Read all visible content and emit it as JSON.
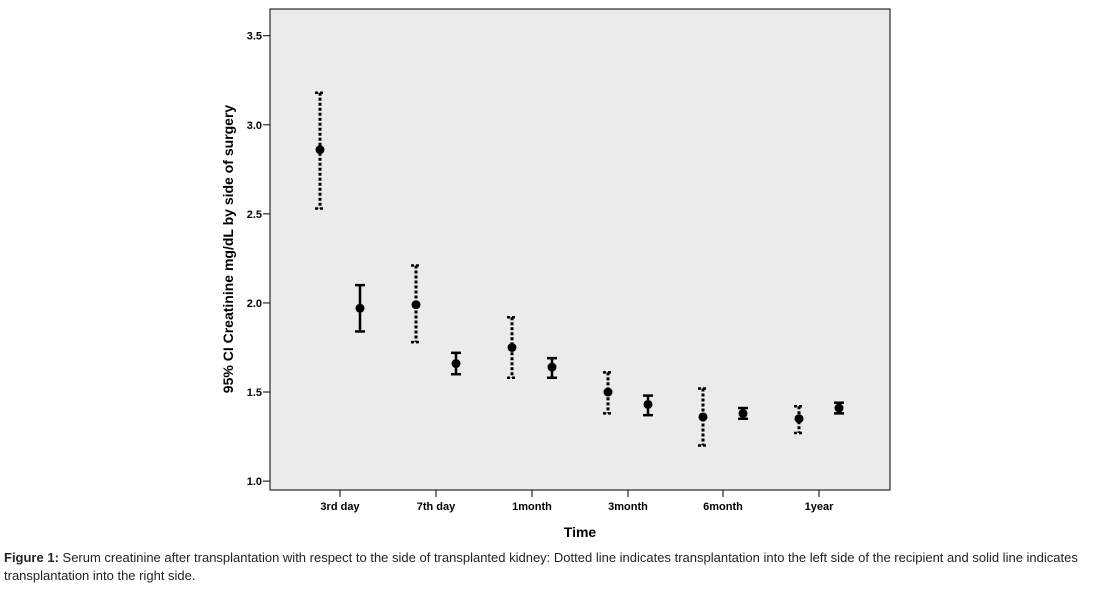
{
  "chart_data": {
    "type": "errorbar",
    "xlabel": "Time",
    "ylabel": "95% CI Creatinine mg/dL by side of surgery",
    "categories": [
      "3rd day",
      "7th day",
      "1month",
      "3month",
      "6month",
      "1year"
    ],
    "ylim": [
      0.95,
      3.65
    ],
    "yticks": [
      "1.0",
      "1.5",
      "2.0",
      "2.5",
      "3.0",
      "3.5"
    ],
    "grid": false,
    "background": "#ebebeb",
    "series": [
      {
        "style": "dotted",
        "color": "#000000",
        "mean": [
          2.86,
          1.99,
          1.75,
          1.5,
          1.36,
          1.35
        ],
        "lower": [
          2.53,
          1.78,
          1.58,
          1.38,
          1.2,
          1.27
        ],
        "upper": [
          3.18,
          2.21,
          1.92,
          1.61,
          1.52,
          1.42
        ]
      },
      {
        "style": "solid",
        "color": "#000000",
        "mean": [
          1.97,
          1.66,
          1.64,
          1.43,
          1.38,
          1.41
        ],
        "lower": [
          1.84,
          1.6,
          1.58,
          1.37,
          1.35,
          1.38
        ],
        "upper": [
          2.1,
          1.72,
          1.69,
          1.48,
          1.41,
          1.44
        ]
      }
    ]
  },
  "caption": {
    "label": "Figure 1:",
    "text": " Serum creatinine after transplantation with respect to the side of transplanted kidney: Dotted line indicates transplantation into the left side of the recipient and solid line indicates transplantation into the right side."
  }
}
